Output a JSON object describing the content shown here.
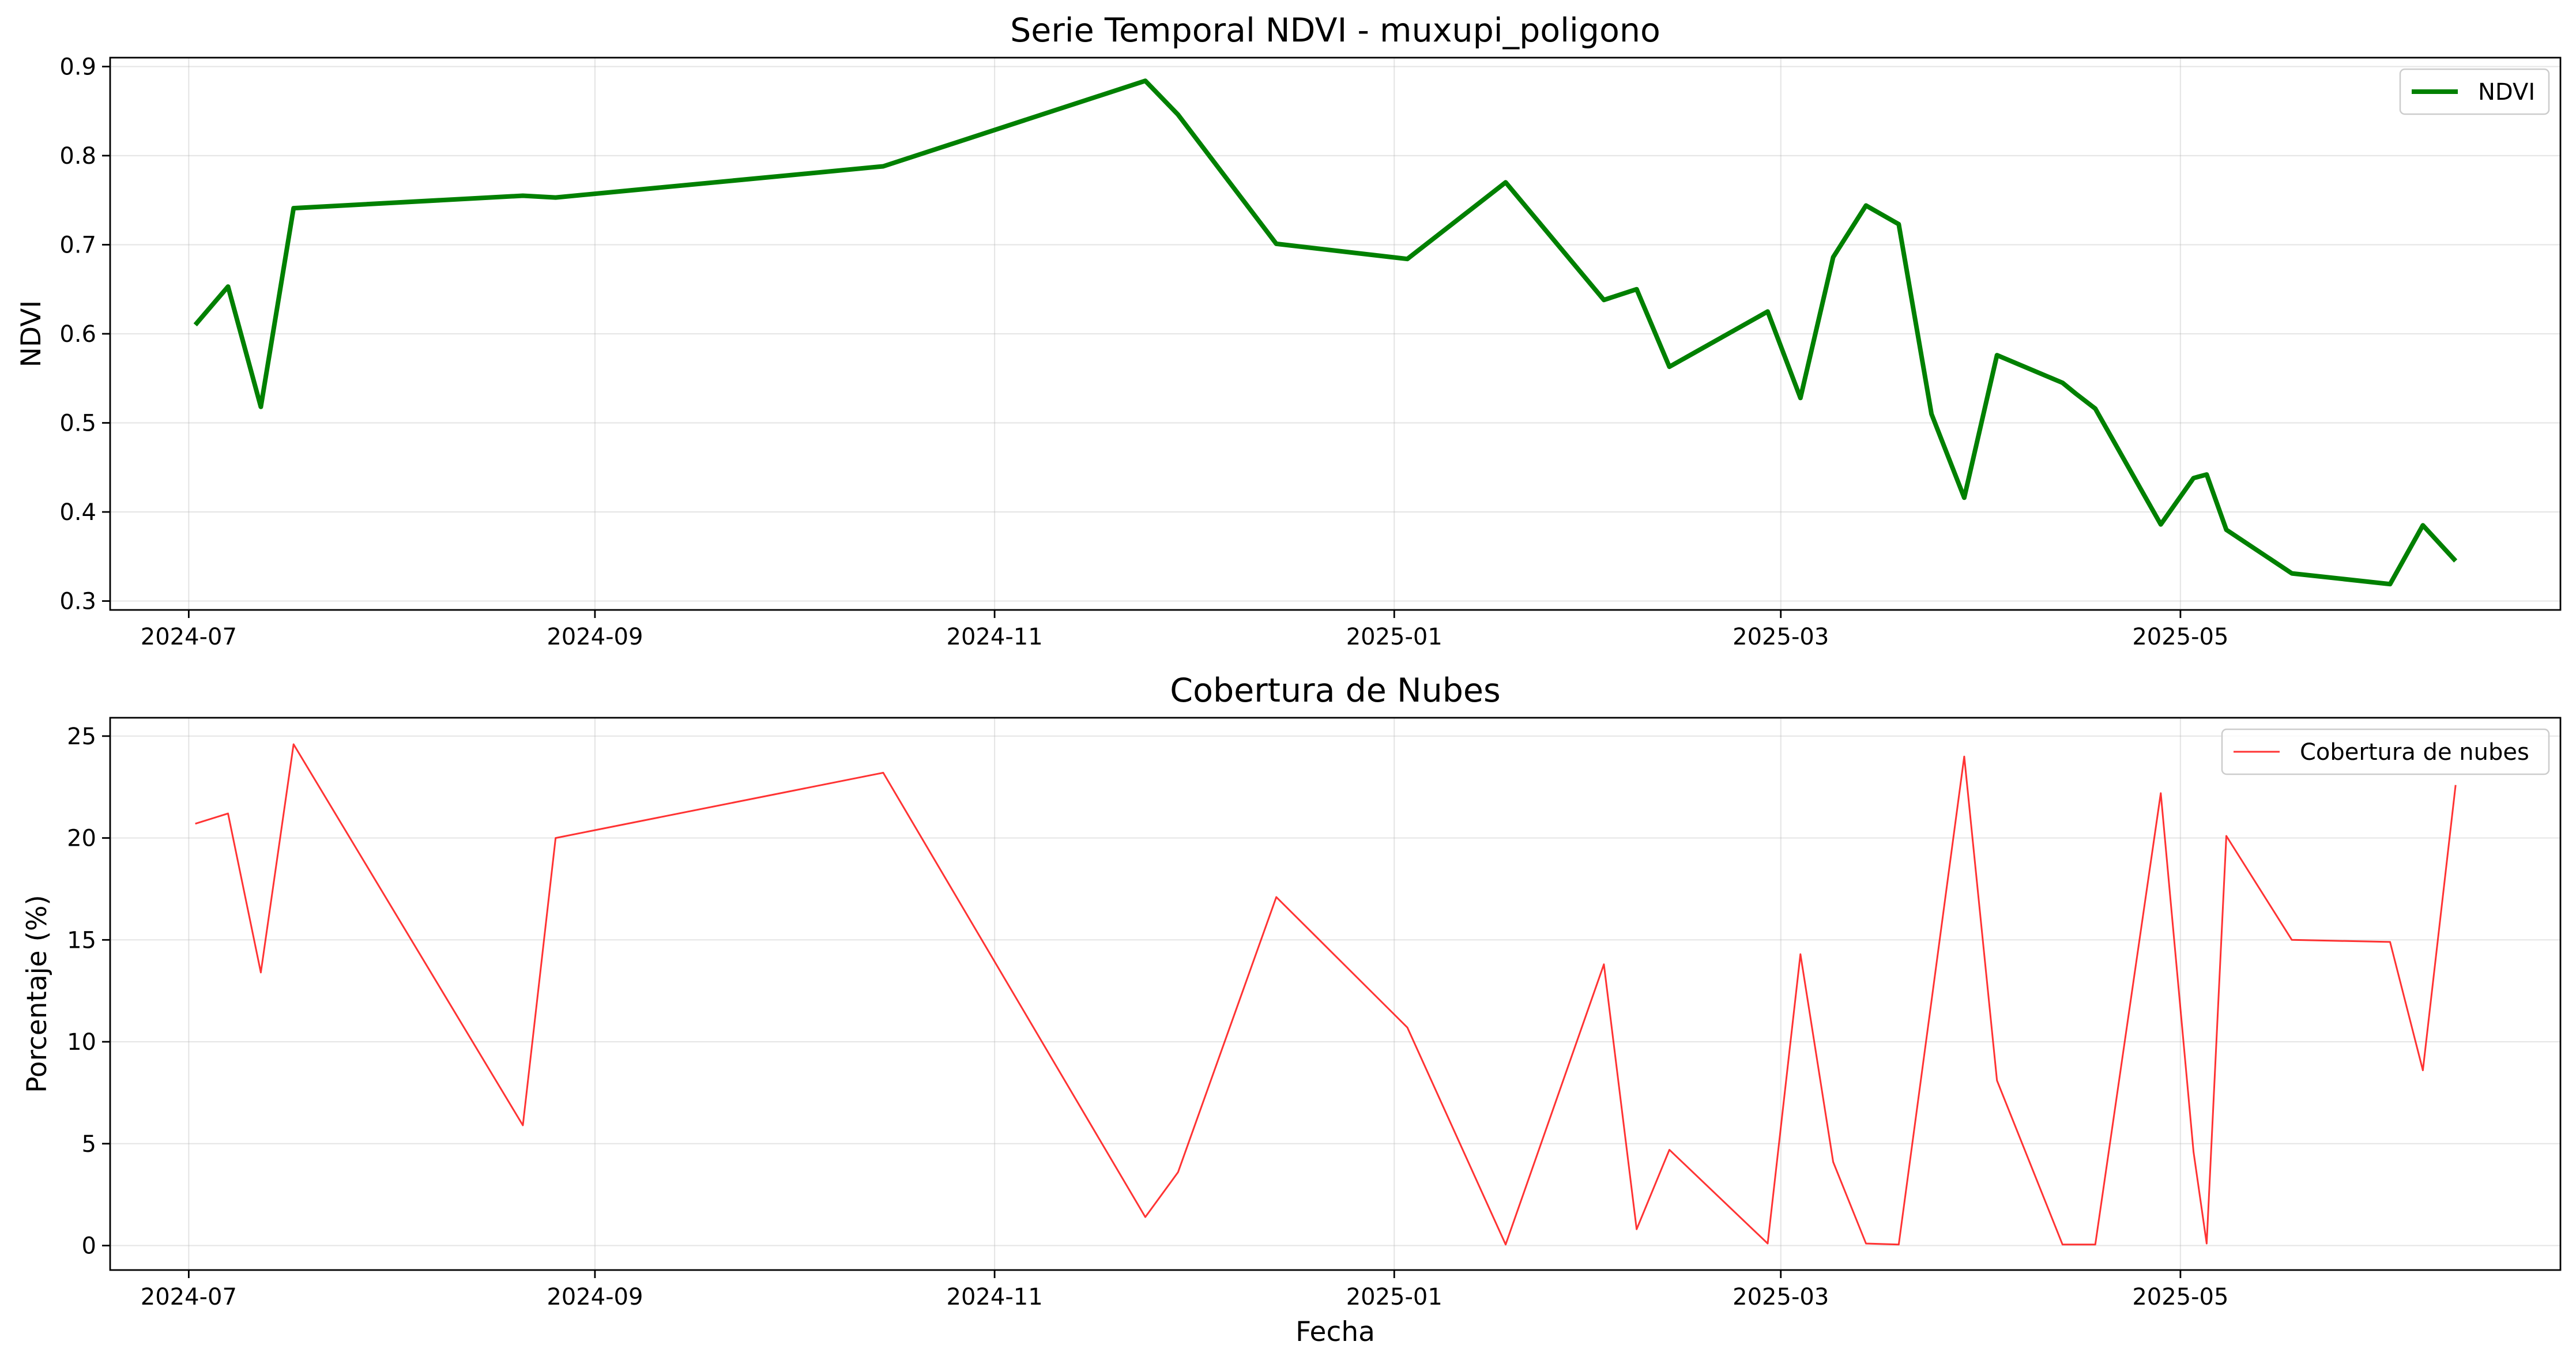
{
  "chart_data": [
    {
      "type": "line",
      "title": "Serie Temporal NDVI - muxupi_poligono",
      "xlabel": "",
      "ylabel": "NDVI",
      "x_ticks": [
        "2024-07",
        "2024-09",
        "2024-11",
        "2025-01",
        "2025-03",
        "2025-05"
      ],
      "y_ticks": [
        "0.3",
        "0.4",
        "0.5",
        "0.6",
        "0.7",
        "0.8",
        "0.9"
      ],
      "xlim": [
        "2024-06-19",
        "2025-06-28"
      ],
      "ylim": [
        0.29,
        0.91
      ],
      "grid": true,
      "legend_position": "top-right",
      "series": [
        {
          "name": "NDVI",
          "color": "#008000",
          "x": [
            "2024-07-02",
            "2024-07-07",
            "2024-07-12",
            "2024-07-17",
            "2024-08-21",
            "2024-08-26",
            "2024-10-15",
            "2024-11-24",
            "2024-11-29",
            "2024-12-14",
            "2025-01-03",
            "2025-01-18",
            "2025-02-02",
            "2025-02-07",
            "2025-02-12",
            "2025-02-27",
            "2025-03-04",
            "2025-03-09",
            "2025-03-14",
            "2025-03-19",
            "2025-03-24",
            "2025-03-29",
            "2025-04-03",
            "2025-04-13",
            "2025-04-15",
            "2025-04-18",
            "2025-04-28",
            "2025-05-03",
            "2025-05-05",
            "2025-05-08",
            "2025-05-18",
            "2025-06-02",
            "2025-06-07",
            "2025-06-12"
          ],
          "values": [
            0.61,
            0.653,
            0.518,
            0.741,
            0.755,
            0.753,
            0.788,
            0.884,
            0.846,
            0.701,
            0.684,
            0.77,
            0.638,
            0.65,
            0.563,
            0.625,
            0.528,
            0.686,
            0.744,
            0.723,
            0.51,
            0.416,
            0.576,
            0.545,
            0.533,
            0.516,
            0.386,
            0.438,
            0.442,
            0.38,
            0.331,
            0.319,
            0.385,
            0.345
          ]
        }
      ]
    },
    {
      "type": "line",
      "title": "Cobertura de Nubes",
      "xlabel": "Fecha",
      "ylabel": "Porcentaje (%)",
      "x_ticks": [
        "2024-07",
        "2024-09",
        "2024-11",
        "2025-01",
        "2025-03",
        "2025-05"
      ],
      "y_ticks": [
        "0",
        "5",
        "10",
        "15",
        "20",
        "25"
      ],
      "xlim": [
        "2024-06-19",
        "2025-06-28"
      ],
      "ylim": [
        -1.2,
        25.9
      ],
      "grid": true,
      "legend_position": "top-right",
      "series": [
        {
          "name": "Cobertura de nubes",
          "color": "#ff0000",
          "x": [
            "2024-07-02",
            "2024-07-07",
            "2024-07-12",
            "2024-07-17",
            "2024-08-21",
            "2024-08-26",
            "2024-10-15",
            "2024-11-24",
            "2024-11-29",
            "2024-12-14",
            "2025-01-03",
            "2025-01-18",
            "2025-02-02",
            "2025-02-07",
            "2025-02-12",
            "2025-02-27",
            "2025-03-04",
            "2025-03-09",
            "2025-03-14",
            "2025-03-19",
            "2025-03-24",
            "2025-03-29",
            "2025-04-03",
            "2025-04-13",
            "2025-04-18",
            "2025-04-28",
            "2025-05-03",
            "2025-05-05",
            "2025-05-08",
            "2025-05-18",
            "2025-06-02",
            "2025-06-07",
            "2025-06-12"
          ],
          "values": [
            20.7,
            21.2,
            13.4,
            24.6,
            5.9,
            20.0,
            23.2,
            1.4,
            3.6,
            17.1,
            10.7,
            0.05,
            13.8,
            0.8,
            4.7,
            0.1,
            14.3,
            4.1,
            0.1,
            0.05,
            12.0,
            24.0,
            8.1,
            0.05,
            0.05,
            22.2,
            4.6,
            0.1,
            20.1,
            15.0,
            14.9,
            8.6,
            22.6
          ]
        }
      ]
    }
  ]
}
